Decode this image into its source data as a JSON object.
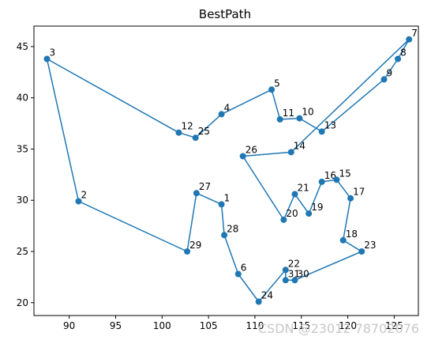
{
  "chart_data": {
    "type": "line",
    "title": "BestPath",
    "xlabel": "",
    "ylabel": "",
    "xlim": [
      86.2,
      127.6
    ],
    "ylim": [
      18.75,
      47.0
    ],
    "xticks": [
      90,
      95,
      100,
      105,
      110,
      115,
      120,
      125
    ],
    "yticks": [
      20,
      25,
      30,
      35,
      40,
      45
    ],
    "grid": false,
    "marker": "circle",
    "color": "#1f77b4",
    "path": [
      {
        "label": "7",
        "x": 126.6,
        "y": 45.7
      },
      {
        "label": "14",
        "x": 113.9,
        "y": 34.7
      },
      {
        "label": "26",
        "x": 108.7,
        "y": 34.3
      },
      {
        "label": "20",
        "x": 113.1,
        "y": 28.1
      },
      {
        "label": "21",
        "x": 114.3,
        "y": 30.6
      },
      {
        "label": "19",
        "x": 115.8,
        "y": 28.7
      },
      {
        "label": "16",
        "x": 117.2,
        "y": 31.8
      },
      {
        "label": "15",
        "x": 118.8,
        "y": 32.0
      },
      {
        "label": "17",
        "x": 120.3,
        "y": 30.2
      },
      {
        "label": "18",
        "x": 119.5,
        "y": 26.1
      },
      {
        "label": "23",
        "x": 121.5,
        "y": 25.0
      },
      {
        "label": "30",
        "x": 114.3,
        "y": 22.2
      },
      {
        "label": "31",
        "x": 113.3,
        "y": 22.2
      },
      {
        "label": "22",
        "x": 113.3,
        "y": 23.2
      },
      {
        "label": "24",
        "x": 110.4,
        "y": 20.1
      },
      {
        "label": "6",
        "x": 108.2,
        "y": 22.8
      },
      {
        "label": "28",
        "x": 106.7,
        "y": 26.6
      },
      {
        "label": "1",
        "x": 106.4,
        "y": 29.6
      },
      {
        "label": "27",
        "x": 103.7,
        "y": 30.7
      },
      {
        "label": "29",
        "x": 102.7,
        "y": 25.0
      },
      {
        "label": "2",
        "x": 91.0,
        "y": 29.9
      },
      {
        "label": "3",
        "x": 87.6,
        "y": 43.8
      },
      {
        "label": "12",
        "x": 101.8,
        "y": 36.6
      },
      {
        "label": "25",
        "x": 103.6,
        "y": 36.1
      },
      {
        "label": "4",
        "x": 106.4,
        "y": 38.4
      },
      {
        "label": "5",
        "x": 111.8,
        "y": 40.8
      },
      {
        "label": "11",
        "x": 112.7,
        "y": 37.9
      },
      {
        "label": "10",
        "x": 114.8,
        "y": 38.0
      },
      {
        "label": "13",
        "x": 117.2,
        "y": 36.7
      },
      {
        "label": "9",
        "x": 123.9,
        "y": 41.8
      },
      {
        "label": "8",
        "x": 125.4,
        "y": 43.8
      },
      {
        "label": "7",
        "x": 126.6,
        "y": 45.7
      }
    ],
    "watermark": "CSDN @23012 78702076"
  }
}
